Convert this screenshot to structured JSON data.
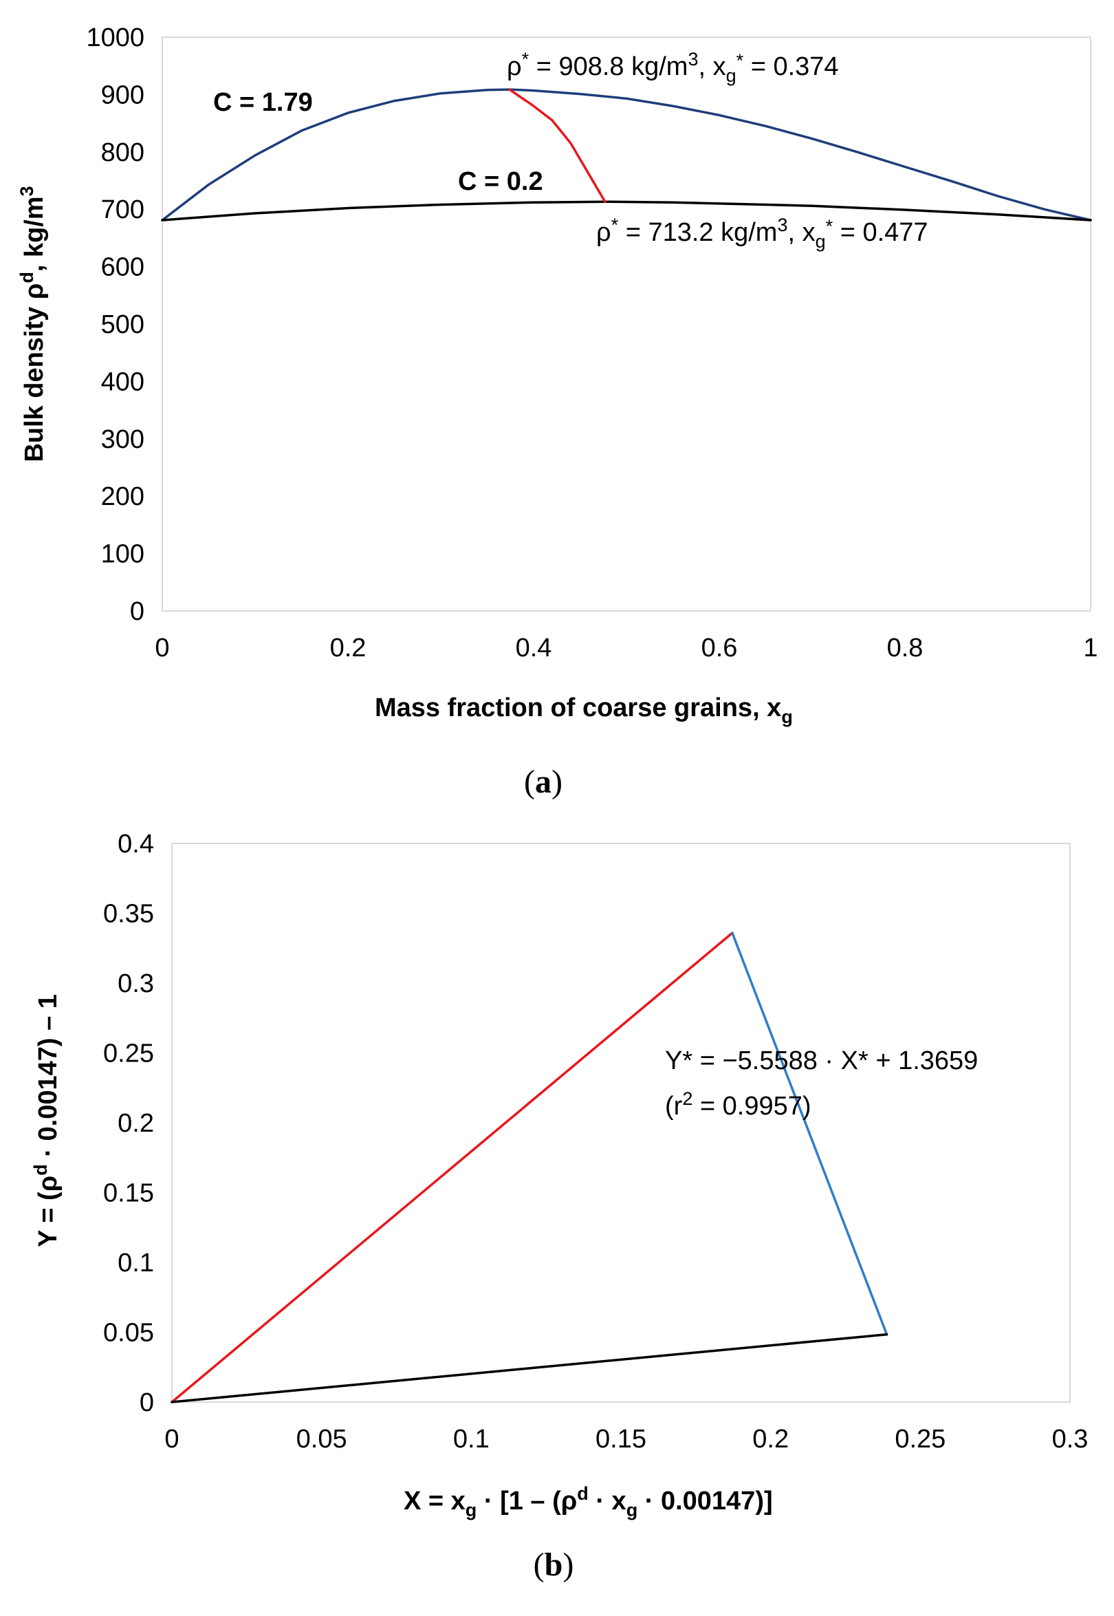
{
  "chart_data": [
    {
      "type": "line",
      "panel_label": "(a)",
      "panel_letter": "a",
      "xlabel": "Mass fraction of coarse grains, x",
      "xlabel_sub": "g",
      "ylabel_main": "Bulk density ρ",
      "ylabel_sup": "d",
      "ylabel_unit": ", kg/m",
      "ylabel_unit_sup": "3",
      "xlim": [
        0,
        1
      ],
      "ylim": [
        0,
        1000
      ],
      "x_ticks": [
        0,
        0.2,
        0.4,
        0.6,
        0.8,
        1
      ],
      "x_tick_labels": [
        "0",
        "0.2",
        "0.4",
        "0.6",
        "0.8",
        "1"
      ],
      "y_ticks": [
        0,
        100,
        200,
        300,
        400,
        500,
        600,
        700,
        800,
        900,
        1000
      ],
      "y_tick_labels": [
        "0",
        "100",
        "200",
        "300",
        "400",
        "500",
        "600",
        "700",
        "800",
        "900",
        "1000"
      ],
      "series": [
        {
          "name": "C = 1.79",
          "color": "#1f3d7a",
          "x": [
            0,
            0.05,
            0.1,
            0.15,
            0.2,
            0.25,
            0.3,
            0.35,
            0.374,
            0.4,
            0.45,
            0.5,
            0.55,
            0.6,
            0.65,
            0.7,
            0.75,
            0.8,
            0.85,
            0.9,
            0.95,
            1
          ],
          "y": [
            681,
            743,
            794,
            837,
            868,
            889,
            902,
            908,
            908.8,
            907,
            901,
            893,
            880,
            864,
            845,
            823,
            799,
            774,
            749,
            723,
            700,
            681
          ]
        },
        {
          "name": "C = 0.2",
          "color": "#000000",
          "x": [
            0,
            0.1,
            0.2,
            0.3,
            0.4,
            0.477,
            0.55,
            0.6,
            0.7,
            0.8,
            0.9,
            1
          ],
          "y": [
            681,
            693,
            702,
            708,
            712,
            713.2,
            712,
            710,
            706,
            699,
            691,
            681
          ]
        },
        {
          "name": "locus of maxima",
          "color": "#e8181c",
          "x": [
            0.374,
            0.4,
            0.42,
            0.44,
            0.46,
            0.477
          ],
          "y": [
            908.8,
            880,
            855,
            815,
            760,
            713.2
          ]
        }
      ],
      "annotations": {
        "max1": {
          "rho": "908.8",
          "xg": "0.374",
          "x": 0.374,
          "y": 908.8
        },
        "max2": {
          "rho": "713.2",
          "xg": "0.477",
          "x": 0.477,
          "y": 713.2
        },
        "label_c1": "C = 1.79",
        "label_c2": "C = 0.2",
        "rho_sym": "ρ",
        "star": "*",
        "eq_rho": " = ",
        "unit_kg": " kg/m",
        "unit_sup": "3",
        "comma_x": ", x",
        "sub_g": "g",
        "eq_x": " = "
      }
    },
    {
      "type": "line",
      "panel_label": "(b)",
      "panel_letter": "b",
      "xlabel_parts": {
        "p1": "X = x",
        "s1": "g",
        "p2": " · [1 – (ρ",
        "s2": "d",
        "p3": " · x",
        "s3": "g",
        "p4": " · 0.00147)]"
      },
      "ylabel_parts": {
        "p1": "Y = (ρ",
        "s1": "d",
        "p2": " · 0.00147) – 1"
      },
      "xlim": [
        0,
        0.3
      ],
      "ylim": [
        0,
        0.4
      ],
      "x_ticks": [
        0,
        0.05,
        0.1,
        0.15,
        0.2,
        0.25,
        0.3
      ],
      "x_tick_labels": [
        "0",
        "0.05",
        "0.1",
        "0.15",
        "0.2",
        "0.25",
        "0.3"
      ],
      "y_ticks": [
        0,
        0.05,
        0.1,
        0.15,
        0.2,
        0.25,
        0.3,
        0.35,
        0.4
      ],
      "y_tick_labels": [
        "0",
        "0.05",
        "0.1",
        "0.15",
        "0.2",
        "0.25",
        "0.3",
        "0.35",
        "0.4"
      ],
      "series": [
        {
          "name": "red line",
          "color": "#e8181c",
          "x": [
            0,
            0.1872
          ],
          "y": [
            0,
            0.3359
          ]
        },
        {
          "name": "blue line",
          "color": "#2e7ec9",
          "x": [
            0.1872,
            0.2388
          ],
          "y": [
            0.3359,
            0.0484
          ]
        },
        {
          "name": "black line",
          "color": "#000000",
          "x": [
            0,
            0.2388
          ],
          "y": [
            0,
            0.0484
          ]
        }
      ],
      "annotation": {
        "line1": "Y* = −5.5588 · X* + 1.3659",
        "line2_a": "(r",
        "line2_sup": "2",
        "line2_b": " = 0.9957)"
      }
    }
  ]
}
